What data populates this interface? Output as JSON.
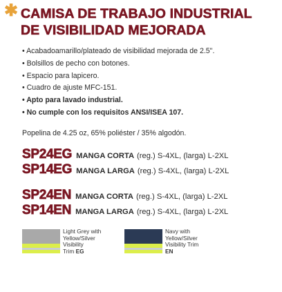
{
  "header": {
    "star_glyph": "✱",
    "title_line1": "CAMISA DE TRABAJO INDUSTRIAL",
    "title_line2": "DE VISIBILIDAD MEJORADA",
    "accent_color": "#7a1622",
    "star_color": "#e8a33a"
  },
  "features": [
    "Acabadoamarillo/plateado de visibilidad mejorada de 2.5\".",
    "Bolsillos de pecho con botones.",
    "Espacio para lapicero.",
    "Cuadro de ajuste MFC-151.",
    "Apto para lavado industrial.",
    "No cumple con los requisitos ANSI/ISEA 107."
  ],
  "fabric": "Popelina de 4.25 oz, 65% poliéster / 35% algodón.",
  "products": [
    {
      "code": "SP24EG",
      "sleeve": "MANGA CORTA",
      "sizes": "(reg.) S-4XL, (larga) L-2XL"
    },
    {
      "code": "SP14EG",
      "sleeve": "MANGA LARGA",
      "sizes": "(reg.) S-4XL, (larga) L-2XL"
    },
    {
      "code": "SP24EN",
      "sleeve": "MANGA CORTA",
      "sizes": "(reg.) S-4XL, (larga) L-2XL"
    },
    {
      "code": "SP14EN",
      "sleeve": "MANGA LARGA",
      "sizes": "(reg.) S-4XL, (larga) L-2XL"
    }
  ],
  "swatches": [
    {
      "line1": "Light Grey with",
      "line2": "Yellow/Silver",
      "line3": "Visibility",
      "line4": "Trim",
      "code": "EG",
      "color": "#a9a9a9"
    },
    {
      "line1": "Navy with",
      "line2": "Yellow/Silver",
      "line3": "Visibility Trim",
      "line4": "",
      "code": "EN",
      "color": "#2b3a55"
    }
  ]
}
